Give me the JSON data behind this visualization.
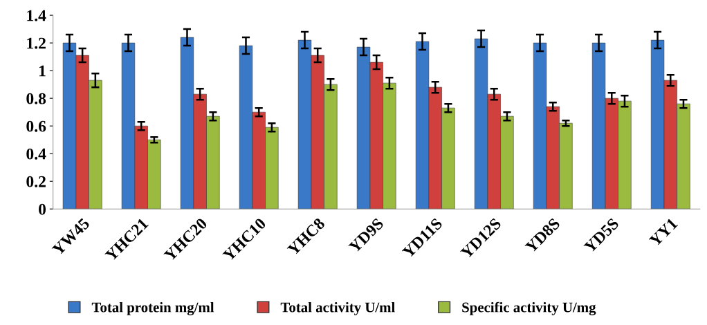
{
  "chart_data": {
    "type": "bar",
    "categories": [
      "YW45",
      "YHC21",
      "YHC20",
      "YHC10",
      "YHC8",
      "YD9S",
      "YD11S",
      "YD12S",
      "YD8S",
      "YD5S",
      "YY1"
    ],
    "series": [
      {
        "name": "Total protein mg/ml",
        "color": "#3a78c8",
        "values": [
          1.2,
          1.2,
          1.24,
          1.18,
          1.22,
          1.17,
          1.21,
          1.23,
          1.2,
          1.2,
          1.22
        ],
        "errors": [
          0.06,
          0.06,
          0.06,
          0.06,
          0.06,
          0.06,
          0.06,
          0.06,
          0.06,
          0.06,
          0.06
        ]
      },
      {
        "name": "Total activity U/ml",
        "color": "#d0403c",
        "values": [
          1.11,
          0.6,
          0.83,
          0.7,
          1.11,
          1.06,
          0.88,
          0.83,
          0.74,
          0.8,
          0.93
        ],
        "errors": [
          0.05,
          0.03,
          0.04,
          0.03,
          0.05,
          0.05,
          0.04,
          0.04,
          0.03,
          0.04,
          0.04
        ]
      },
      {
        "name": "Specific activity U/mg",
        "color": "#9bbb40",
        "values": [
          0.93,
          0.5,
          0.67,
          0.59,
          0.9,
          0.91,
          0.73,
          0.67,
          0.62,
          0.78,
          0.76
        ],
        "errors": [
          0.05,
          0.02,
          0.03,
          0.03,
          0.04,
          0.04,
          0.03,
          0.03,
          0.02,
          0.04,
          0.03
        ]
      }
    ],
    "ylim": [
      0,
      1.4
    ],
    "yticks": [
      0,
      0.2,
      0.4,
      0.6,
      0.8,
      1,
      1.2,
      1.4
    ],
    "grid": false,
    "legend": "bottom"
  }
}
